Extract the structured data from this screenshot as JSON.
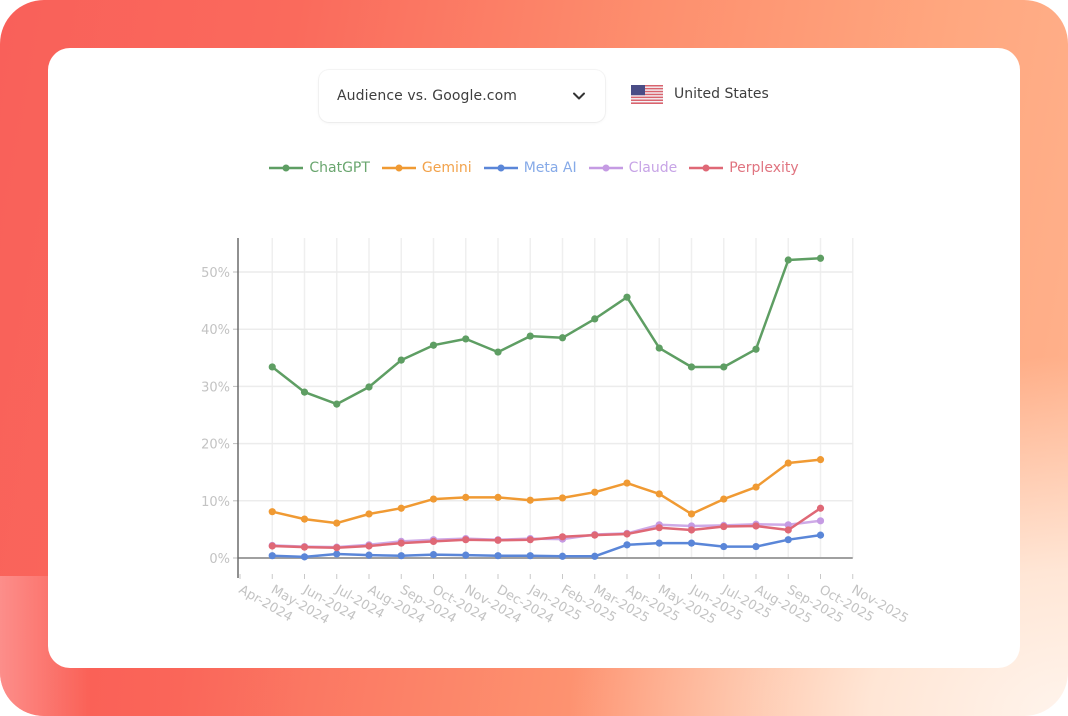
{
  "controls": {
    "comparison_dropdown": {
      "label": "Audience vs. Google.com",
      "icon": "chevron-down-icon"
    },
    "country": {
      "label": "United States",
      "icon": "us-flag-icon"
    }
  },
  "legend": [
    {
      "name": "ChatGPT",
      "color": "#5e9e63",
      "text_color": "#6aa66f"
    },
    {
      "name": "Gemini",
      "color": "#f09a33",
      "text_color": "#f2a24a"
    },
    {
      "name": "Meta AI",
      "color": "#5a86d8",
      "text_color": "#86aae8"
    },
    {
      "name": "Claude",
      "color": "#c59be3",
      "text_color": "#c7a4e6"
    },
    {
      "name": "Perplexity",
      "color": "#df6876",
      "text_color": "#e07480"
    }
  ],
  "chart_data": {
    "type": "line",
    "title": "",
    "xlabel": "",
    "ylabel": "",
    "ylim": [
      -3.5,
      57
    ],
    "y_ticks": [
      "0%",
      "10%",
      "20%",
      "30%",
      "40%",
      "50%"
    ],
    "x_ticks": [
      "Apr-2024",
      "May-2024",
      "Jun-2024",
      "Jul-2024",
      "Aug-2024",
      "Sep-2024",
      "Oct-2024",
      "Nov-2024",
      "Dec-2024",
      "Jan-2025",
      "Feb-2025",
      "Mar-2025",
      "Apr-2025",
      "May-2025",
      "Jun-2025",
      "Jul-2025",
      "Aug-2025",
      "Sep-2025",
      "Oct-2025",
      "Nov-2025"
    ],
    "categories": [
      "May-2024",
      "Jun-2024",
      "Jul-2024",
      "Aug-2024",
      "Sep-2024",
      "Oct-2024",
      "Nov-2024",
      "Dec-2024",
      "Jan-2025",
      "Feb-2025",
      "Mar-2025",
      "Apr-2025",
      "May-2025",
      "Jun-2025",
      "Jul-2025",
      "Aug-2025",
      "Sep-2025",
      "Oct-2025"
    ],
    "grid": true,
    "legend_position": "top",
    "series": [
      {
        "name": "ChatGPT",
        "values": [
          33.4,
          29.0,
          26.9,
          29.9,
          34.6,
          37.2,
          38.3,
          36.0,
          38.8,
          38.5,
          41.8,
          45.6,
          36.7,
          33.4,
          33.4,
          36.5,
          52.1,
          52.4
        ]
      },
      {
        "name": "Gemini",
        "values": [
          8.1,
          6.8,
          6.1,
          7.7,
          8.7,
          10.3,
          10.6,
          10.6,
          10.1,
          10.5,
          11.5,
          13.1,
          11.2,
          7.7,
          10.3,
          12.4,
          16.6,
          17.2
        ]
      },
      {
        "name": "Meta AI",
        "values": [
          0.4,
          0.2,
          0.7,
          0.5,
          0.4,
          0.6,
          0.5,
          0.4,
          0.4,
          0.3,
          0.3,
          2.3,
          2.6,
          2.6,
          2.0,
          2.0,
          3.2,
          4.0
        ]
      },
      {
        "name": "Claude",
        "values": [
          2.2,
          2.0,
          1.9,
          2.3,
          2.9,
          3.2,
          3.4,
          3.2,
          3.4,
          3.3,
          4.1,
          4.3,
          5.8,
          5.6,
          5.7,
          5.9,
          5.8,
          6.5
        ]
      },
      {
        "name": "Perplexity",
        "values": [
          2.1,
          1.9,
          1.8,
          2.1,
          2.6,
          2.9,
          3.2,
          3.1,
          3.2,
          3.7,
          4.0,
          4.2,
          5.3,
          4.9,
          5.5,
          5.6,
          4.9,
          8.7
        ]
      }
    ]
  }
}
